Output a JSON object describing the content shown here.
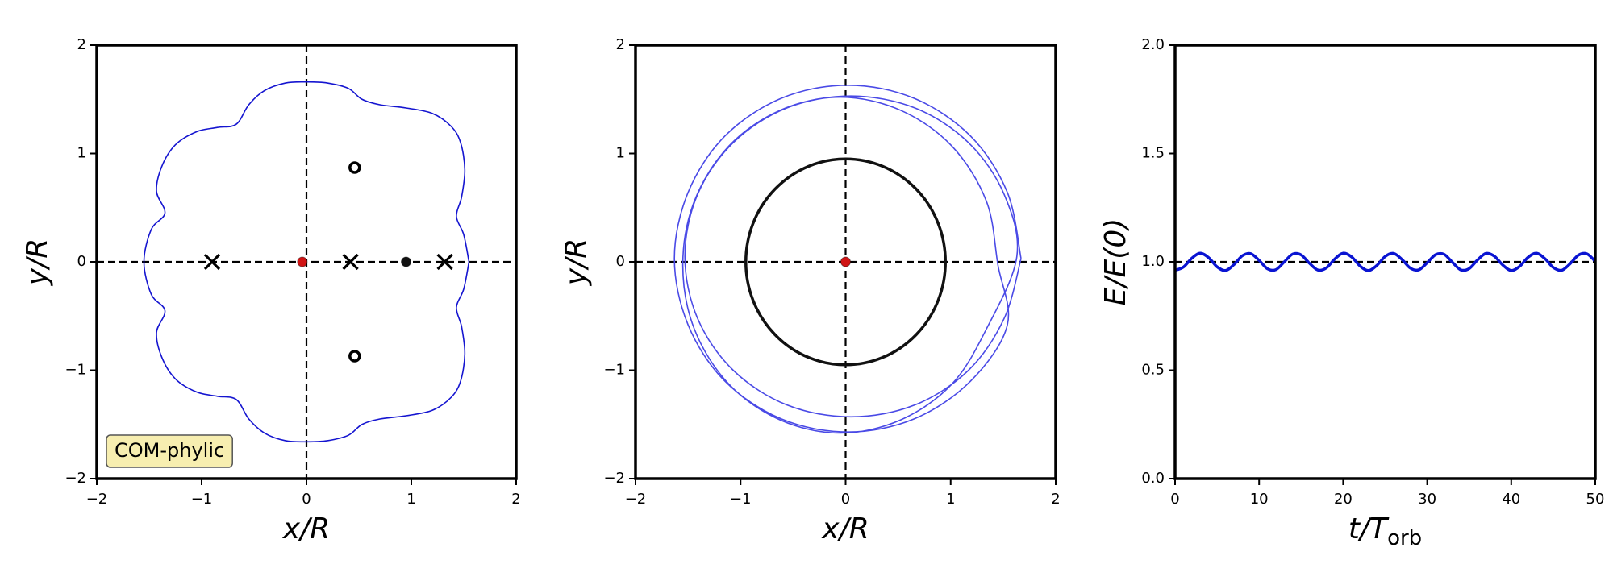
{
  "chart_data": [
    {
      "type": "line",
      "xlabel": "x/R",
      "ylabel": "y/R",
      "xlim": [
        -2,
        2
      ],
      "ylim": [
        -2,
        2
      ],
      "xticks": [
        {
          "value": -2,
          "label": "−2"
        },
        {
          "value": -1,
          "label": "−1"
        },
        0,
        1,
        2
      ],
      "yticks": [
        {
          "value": -2,
          "label": "−2"
        },
        {
          "value": -1,
          "label": "−1"
        },
        0,
        1,
        2
      ],
      "ref_lines": {
        "x": 0,
        "y": 0
      },
      "series": [
        {
          "color": "#1515d0",
          "x": [
            1.55,
            1.5,
            1.43,
            1.48,
            1.51,
            1.47,
            1.38,
            1.2,
            0.95,
            0.7,
            0.53,
            0.4,
            0.2,
            0,
            -0.2,
            -0.4,
            -0.55,
            -0.67,
            -0.85,
            -1.05,
            -1.25,
            -1.38,
            -1.43,
            -1.35,
            -1.48,
            -1.55,
            -1.48,
            -1.35,
            -1.43,
            -1.38,
            -1.25,
            -1.05,
            -0.85,
            -0.67,
            -0.55,
            -0.4,
            -0.2,
            0,
            0.2,
            0.4,
            0.53,
            0.7,
            0.95,
            1.2,
            1.38,
            1.47,
            1.51,
            1.48,
            1.43,
            1.5,
            1.55
          ],
          "y": [
            0,
            0.25,
            0.42,
            0.6,
            0.85,
            1.1,
            1.25,
            1.37,
            1.42,
            1.45,
            1.5,
            1.6,
            1.65,
            1.66,
            1.65,
            1.58,
            1.45,
            1.27,
            1.24,
            1.2,
            1.08,
            0.88,
            0.65,
            0.45,
            0.3,
            0,
            -0.3,
            -0.45,
            -0.65,
            -0.88,
            -1.08,
            -1.2,
            -1.24,
            -1.27,
            -1.45,
            -1.58,
            -1.65,
            -1.66,
            -1.65,
            -1.6,
            -1.5,
            -1.45,
            -1.42,
            -1.37,
            -1.25,
            -1.1,
            -0.85,
            -0.6,
            -0.42,
            -0.25,
            0
          ]
        }
      ],
      "points": [
        {
          "marker": "x",
          "color": "#000000",
          "x": [
            -0.9,
            0.42,
            1.32
          ],
          "y": [
            0,
            0,
            0
          ]
        },
        {
          "marker": "open-circle",
          "color": "#000000",
          "x": [
            0.46,
            0.46
          ],
          "y": [
            0.87,
            -0.87
          ]
        },
        {
          "marker": "filled-circle",
          "color": "#111111",
          "x": [
            0.95
          ],
          "y": [
            0
          ]
        },
        {
          "marker": "filled-circle",
          "color": "#d01414",
          "x": [
            -0.04
          ],
          "y": [
            0
          ]
        }
      ],
      "annotation": "COM-phylic"
    },
    {
      "type": "line",
      "xlabel": "x/R",
      "ylabel": "y/R",
      "xlim": [
        -2,
        2
      ],
      "ylim": [
        -2,
        2
      ],
      "xticks": [
        {
          "value": -2,
          "label": "−2"
        },
        {
          "value": -1,
          "label": "−1"
        },
        0,
        1,
        2
      ],
      "yticks": [
        {
          "value": -2,
          "label": "−2"
        },
        {
          "value": -1,
          "label": "−1"
        },
        0,
        1,
        2
      ],
      "ref_lines": {
        "x": 0,
        "y": 0
      },
      "series": [
        {
          "color": "#4a4ae6",
          "x": [
            1.67,
            1.54,
            1.19,
            0.65,
            0.02,
            -0.61,
            -1.15,
            -1.5,
            -1.63,
            -1.5,
            -1.15,
            -0.61,
            0.02,
            0.65,
            1.19,
            1.54,
            1.45,
            1.34,
            1.01,
            0.52,
            -0.05,
            -0.62,
            -1.11,
            -1.44,
            -1.55,
            -1.44,
            -1.11,
            -0.62,
            -0.05,
            0.52,
            1.01,
            1.34,
            1.63,
            1.51,
            1.17,
            0.66,
            0.05,
            -0.56,
            -1.07,
            -1.41,
            -1.53,
            -1.41,
            -1.07,
            -0.56,
            0.05,
            0.66,
            1.17,
            1.51,
            1.67
          ],
          "y": [
            0.03,
            0.64,
            1.16,
            1.51,
            1.63,
            1.51,
            1.16,
            0.64,
            0.03,
            -0.58,
            -1.1,
            -1.45,
            -1.57,
            -1.45,
            -1.1,
            -0.58,
            -0.03,
            0.56,
            1.07,
            1.4,
            1.52,
            1.4,
            1.07,
            0.56,
            -0.03,
            -0.62,
            -1.13,
            -1.46,
            -1.58,
            -1.46,
            -1.13,
            -0.62,
            0.05,
            0.62,
            1.1,
            1.42,
            1.53,
            1.42,
            1.1,
            0.62,
            0.05,
            -0.52,
            -1.0,
            -1.32,
            -1.43,
            -1.32,
            -1.0,
            -0.52,
            0.03
          ]
        }
      ],
      "circles": [
        {
          "cx": 0,
          "cy": 0,
          "r": 0.95,
          "color": "#111111"
        }
      ],
      "points": [
        {
          "marker": "filled-circle",
          "color": "#d01414",
          "x": [
            0
          ],
          "y": [
            0
          ]
        }
      ]
    },
    {
      "type": "line",
      "xlabel": {
        "text": "t/T",
        "subscript": "orb"
      },
      "ylabel": "E/E(0)",
      "xlim": [
        0,
        50
      ],
      "ylim": [
        0,
        2
      ],
      "xticks": [
        0,
        10,
        20,
        30,
        40,
        50
      ],
      "yticks": [
        {
          "value": 0,
          "label": "0.0"
        },
        0.5,
        {
          "value": 1,
          "label": "1.0"
        },
        1.5,
        {
          "value": 2,
          "label": "2.0"
        }
      ],
      "ref_lines": {
        "y": 1
      },
      "series": [
        {
          "color": "#0a14d2",
          "x": [
            0,
            1,
            2,
            3,
            4,
            5,
            6,
            7,
            8,
            9,
            10,
            11,
            12,
            13,
            14,
            15,
            16,
            17,
            18,
            19,
            20,
            21,
            22,
            23,
            24,
            25,
            26,
            27,
            28,
            29,
            30,
            31,
            32,
            33,
            34,
            35,
            36,
            37,
            38,
            39,
            40,
            41,
            42,
            43,
            44,
            45,
            46,
            47,
            48,
            49,
            50
          ],
          "y": [
            0.961,
            0.976,
            1.017,
            1.04,
            1.019,
            0.977,
            0.96,
            0.987,
            1.028,
            1.038,
            1.007,
            0.968,
            0.964,
            1.0,
            1.036,
            1.032,
            0.993,
            0.962,
            0.972,
            1.013,
            1.04,
            1.023,
            0.981,
            0.96,
            0.983,
            1.025,
            1.039,
            1.011,
            0.971,
            0.963,
            0.996,
            1.033,
            1.035,
            0.998,
            0.963,
            0.969,
            1.009,
            1.039,
            1.026,
            0.985,
            0.96,
            0.979,
            1.021,
            1.04,
            1.015,
            0.974,
            0.961,
            0.991,
            1.031,
            1.037,
            1.002
          ]
        }
      ]
    }
  ]
}
